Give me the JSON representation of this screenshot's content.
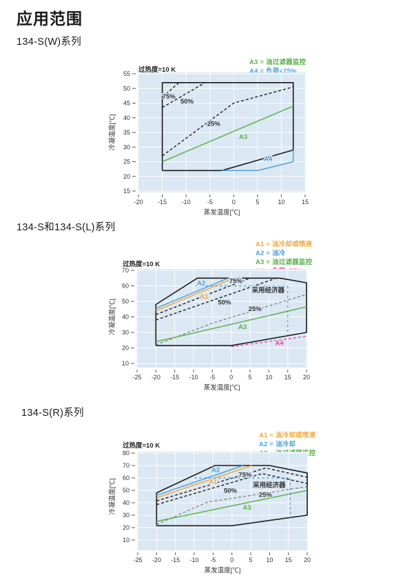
{
  "page": {
    "title": "应用范围"
  },
  "sections": [
    {
      "heading": "134-S(W)系列",
      "superheat": "过热度=10 K",
      "legend": [
        {
          "label": "A3 = 油过滤器监控",
          "color": "#5bb04a"
        },
        {
          "label": "A4 = 负荷<75%",
          "color": "#4fa3d6"
        }
      ]
    },
    {
      "heading": "134-S和134-S(L)系列",
      "superheat": "过热度=10 K",
      "legend": [
        {
          "label": "A1 = 油冷却或喷液",
          "color": "#f3a73a"
        },
        {
          "label": "A2 = 油冷",
          "color": "#4fa3d6"
        },
        {
          "label": "A3 = 油过滤器监控",
          "color": "#5bb04a"
        },
        {
          "label": "A4 = 负荷<75%",
          "color": "#e8489d"
        }
      ]
    },
    {
      "heading": "134-S(R)系列",
      "superheat": "过热度=10 K",
      "legend": [
        {
          "label": "A1 = 油冷却或喷液",
          "color": "#f3a73a"
        },
        {
          "label": "A2 = 油冷却",
          "color": "#4fa3d6"
        },
        {
          "label": "A3 = 油过滤器监控",
          "color": "#5bb04a"
        }
      ]
    }
  ],
  "chart_data": [
    {
      "type": "line",
      "title": "134-S(W)系列 应用范围",
      "xlabel": "蒸发温度[℃]",
      "ylabel": "冷凝温度[℃]",
      "xlim": [
        -20,
        15
      ],
      "ylim": [
        15,
        55
      ],
      "xticks": [
        -20,
        -15,
        -10,
        -5,
        0,
        5,
        10,
        15
      ],
      "yticks": [
        15,
        20,
        25,
        30,
        35,
        40,
        45,
        50,
        55
      ],
      "grid": "on",
      "plot_bg": "#dbe8f3",
      "series": [
        {
          "name": "operating-envelope",
          "color": "#1a1a1a",
          "width": 1.6,
          "dash": null,
          "points": [
            [
              -15,
              22
            ],
            [
              -2.5,
              22
            ],
            [
              12.5,
              29
            ],
            [
              12.5,
              52
            ],
            [
              -15,
              52
            ],
            [
              -15,
              22
            ]
          ]
        },
        {
          "name": "A4-load-limit",
          "color": "#4fa3d6",
          "width": 1.5,
          "dash": null,
          "points": [
            [
              -2.5,
              22
            ],
            [
              5,
              22
            ],
            [
              12.5,
              25
            ],
            [
              12.5,
              29
            ]
          ]
        },
        {
          "name": "A3-oil-filter-monitoring",
          "color": "#5bb04a",
          "width": 1.5,
          "dash": null,
          "points": [
            [
              -15,
              25
            ],
            [
              12.5,
              44
            ]
          ]
        },
        {
          "name": "load-75pct",
          "color": "#1a1a1a",
          "width": 1.4,
          "dash": "4 3",
          "points": [
            [
              -15,
              47
            ],
            [
              -11.5,
              52
            ]
          ]
        },
        {
          "name": "load-50pct",
          "color": "#1a1a1a",
          "width": 1.4,
          "dash": "4 3",
          "points": [
            [
              -15,
              43.5
            ],
            [
              -6,
              52
            ]
          ]
        },
        {
          "name": "load-25pct",
          "color": "#1a1a1a",
          "width": 1.4,
          "dash": "4 3",
          "points": [
            [
              -15,
              27
            ],
            [
              0,
              45
            ],
            [
              12.5,
              50.5
            ]
          ]
        }
      ],
      "labels": [
        {
          "text": "75%",
          "x": -13.6,
          "y": 47.2,
          "color": "#333333"
        },
        {
          "text": "50%",
          "x": -9.8,
          "y": 45.6,
          "color": "#333333"
        },
        {
          "text": "25%",
          "x": -4.2,
          "y": 38,
          "color": "#333333"
        },
        {
          "text": "A3",
          "x": 2,
          "y": 33.5,
          "color": "#5bb04a"
        },
        {
          "text": "A4",
          "x": 7.2,
          "y": 26,
          "color": "#4fa3d6"
        }
      ]
    },
    {
      "type": "line",
      "title": "134-S和134-S(L)系列 应用范围",
      "xlabel": "蒸发温度[℃]",
      "ylabel": "冷凝温度[℃]",
      "xlim": [
        -25,
        20
      ],
      "ylim": [
        10,
        70
      ],
      "xticks": [
        -25,
        -20,
        -15,
        -10,
        -5,
        0,
        5,
        10,
        15,
        20
      ],
      "yticks": [
        10,
        20,
        30,
        40,
        50,
        60,
        70
      ],
      "grid": "on",
      "plot_bg": "#dbe8f3",
      "series": [
        {
          "name": "operating-envelope",
          "color": "#1a1a1a",
          "width": 1.6,
          "dash": null,
          "points": [
            [
              -20,
              21.5
            ],
            [
              0,
              21.5
            ],
            [
              20,
              30
            ],
            [
              20,
              62
            ],
            [
              13,
              65
            ],
            [
              -9,
              65
            ],
            [
              -20,
              48
            ],
            [
              -20,
              21.5
            ]
          ]
        },
        {
          "name": "A2-oil-cooling",
          "color": "#4fa3d6",
          "width": 1.5,
          "dash": null,
          "points": [
            [
              -20,
              45.5
            ],
            [
              -1,
              64.8
            ]
          ]
        },
        {
          "name": "A1-oil-cooling-or-liquid-injection",
          "color": "#f3a73a",
          "width": 1.5,
          "dash": null,
          "points": [
            [
              -20,
              44
            ],
            [
              0.5,
              64.8
            ]
          ]
        },
        {
          "name": "load-75pct",
          "color": "#1a1a1a",
          "width": 1.4,
          "dash": "4 3",
          "points": [
            [
              -20,
              41.5
            ],
            [
              5,
              65
            ]
          ]
        },
        {
          "name": "load-50pct",
          "color": "#1a1a1a",
          "width": 1.4,
          "dash": "4 3",
          "points": [
            [
              -20,
              38
            ],
            [
              12,
              65
            ]
          ]
        },
        {
          "name": "load-25pct",
          "color": "#777777",
          "width": 1.2,
          "dash": "4 3",
          "points": [
            [
              -20,
              22
            ],
            [
              -5,
              36
            ],
            [
              20,
              54.5
            ]
          ]
        },
        {
          "name": "A4-load-limit",
          "color": "#e8489d",
          "width": 1.4,
          "dash": "4 3",
          "points": [
            [
              0,
              20.8
            ],
            [
              20,
              27.5
            ]
          ]
        },
        {
          "name": "economizer-limit-h",
          "color": "#5b9bd5",
          "width": 1.2,
          "dash": "4 3",
          "points": [
            [
              -9.5,
              60
            ],
            [
              15,
              60
            ]
          ]
        },
        {
          "name": "economizer-limit-v",
          "color": "#5b9bd5",
          "width": 1.2,
          "dash": "4 3",
          "points": [
            [
              15,
              60
            ],
            [
              15,
              28
            ]
          ]
        },
        {
          "name": "A3-oil-filter-monitoring",
          "color": "#5bb04a",
          "width": 1.5,
          "dash": null,
          "points": [
            [
              -20,
              24
            ],
            [
              20,
              46.5
            ]
          ]
        }
      ],
      "labels": [
        {
          "text": "A2",
          "x": -8,
          "y": 61.8,
          "color": "#4fa3d6"
        },
        {
          "text": "A1",
          "x": -7.2,
          "y": 53.2,
          "color": "#f3a73a"
        },
        {
          "text": "75%",
          "x": 1.2,
          "y": 63.2,
          "color": "#333333"
        },
        {
          "text": "50%",
          "x": -1.8,
          "y": 49.3,
          "color": "#333333"
        },
        {
          "text": "25%",
          "x": 6.3,
          "y": 45.2,
          "color": "#333333"
        },
        {
          "text": "采用经济器",
          "x": 9.8,
          "y": 57.2,
          "color": "#333333"
        },
        {
          "text": "A3",
          "x": 3,
          "y": 33.5,
          "color": "#5bb04a"
        },
        {
          "text": "A4",
          "x": 12.8,
          "y": 23.2,
          "color": "#e8489d"
        }
      ]
    },
    {
      "type": "line",
      "title": "134-S(R)系列 应用范围",
      "xlabel": "蒸发温度[℃]",
      "ylabel": "冷凝温度[℃]",
      "xlim": [
        -25,
        20
      ],
      "ylim": [
        10,
        80
      ],
      "xticks": [
        -25,
        -20,
        -15,
        -10,
        -5,
        0,
        5,
        10,
        15,
        20
      ],
      "yticks": [
        10,
        20,
        30,
        40,
        50,
        60,
        70,
        80
      ],
      "grid": "on",
      "plot_bg": "#dbe8f3",
      "series": [
        {
          "name": "operating-envelope",
          "color": "#1a1a1a",
          "width": 1.6,
          "dash": null,
          "points": [
            [
              -20,
              21.5
            ],
            [
              0,
              21.5
            ],
            [
              20,
              30
            ],
            [
              20,
              64
            ],
            [
              10,
              70
            ],
            [
              -4.5,
              70
            ],
            [
              -20,
              48
            ],
            [
              -20,
              21.5
            ]
          ]
        },
        {
          "name": "A2-oil-cooling",
          "color": "#4fa3d6",
          "width": 1.5,
          "dash": null,
          "points": [
            [
              -20,
              46
            ],
            [
              3,
              70
            ]
          ]
        },
        {
          "name": "A1-oil-cooling-or-liquid-injection",
          "color": "#f3a73a",
          "width": 1.5,
          "dash": null,
          "points": [
            [
              -20,
              44
            ],
            [
              5.3,
              70
            ]
          ]
        },
        {
          "name": "load-75pct",
          "color": "#1a1a1a",
          "width": 1.4,
          "dash": "4 3",
          "points": [
            [
              -20,
              41.5
            ],
            [
              9,
              68
            ],
            [
              20,
              60.5
            ]
          ]
        },
        {
          "name": "load-50pct",
          "color": "#1a1a1a",
          "width": 1.4,
          "dash": "4 3",
          "points": [
            [
              -20,
              38.5
            ],
            [
              8,
              63.5
            ],
            [
              20,
              55.5
            ]
          ]
        },
        {
          "name": "load-25pct",
          "color": "#777777",
          "width": 1.2,
          "dash": "4 3",
          "points": [
            [
              -20,
              22.5
            ],
            [
              -6.5,
              40.5
            ],
            [
              20,
              53
            ]
          ]
        },
        {
          "name": "economizer-limit-h",
          "color": "#5b9bd5",
          "width": 1.2,
          "dash": "4 3",
          "points": [
            [
              -10,
              60
            ],
            [
              15.5,
              60
            ]
          ]
        },
        {
          "name": "economizer-limit-v",
          "color": "#5b9bd5",
          "width": 1.2,
          "dash": "4 3",
          "points": [
            [
              15.5,
              60
            ],
            [
              15.5,
              28
            ]
          ]
        },
        {
          "name": "A3-oil-filter-monitoring",
          "color": "#5bb04a",
          "width": 1.5,
          "dash": null,
          "points": [
            [
              -20,
              25
            ],
            [
              20,
              50
            ]
          ]
        }
      ],
      "labels": [
        {
          "text": "A2",
          "x": -4.3,
          "y": 66.5,
          "color": "#4fa3d6"
        },
        {
          "text": "A1",
          "x": -5,
          "y": 57,
          "color": "#f3a73a"
        },
        {
          "text": "75%",
          "x": 3.5,
          "y": 62.6,
          "color": "#333333"
        },
        {
          "text": "50%",
          "x": -0.4,
          "y": 49.6,
          "color": "#333333"
        },
        {
          "text": "25%",
          "x": 8.9,
          "y": 46.3,
          "color": "#333333"
        },
        {
          "text": "采用经济器",
          "x": 9.9,
          "y": 54.3,
          "color": "#333333"
        },
        {
          "text": "A3",
          "x": 4,
          "y": 36,
          "color": "#5bb04a"
        }
      ]
    }
  ]
}
